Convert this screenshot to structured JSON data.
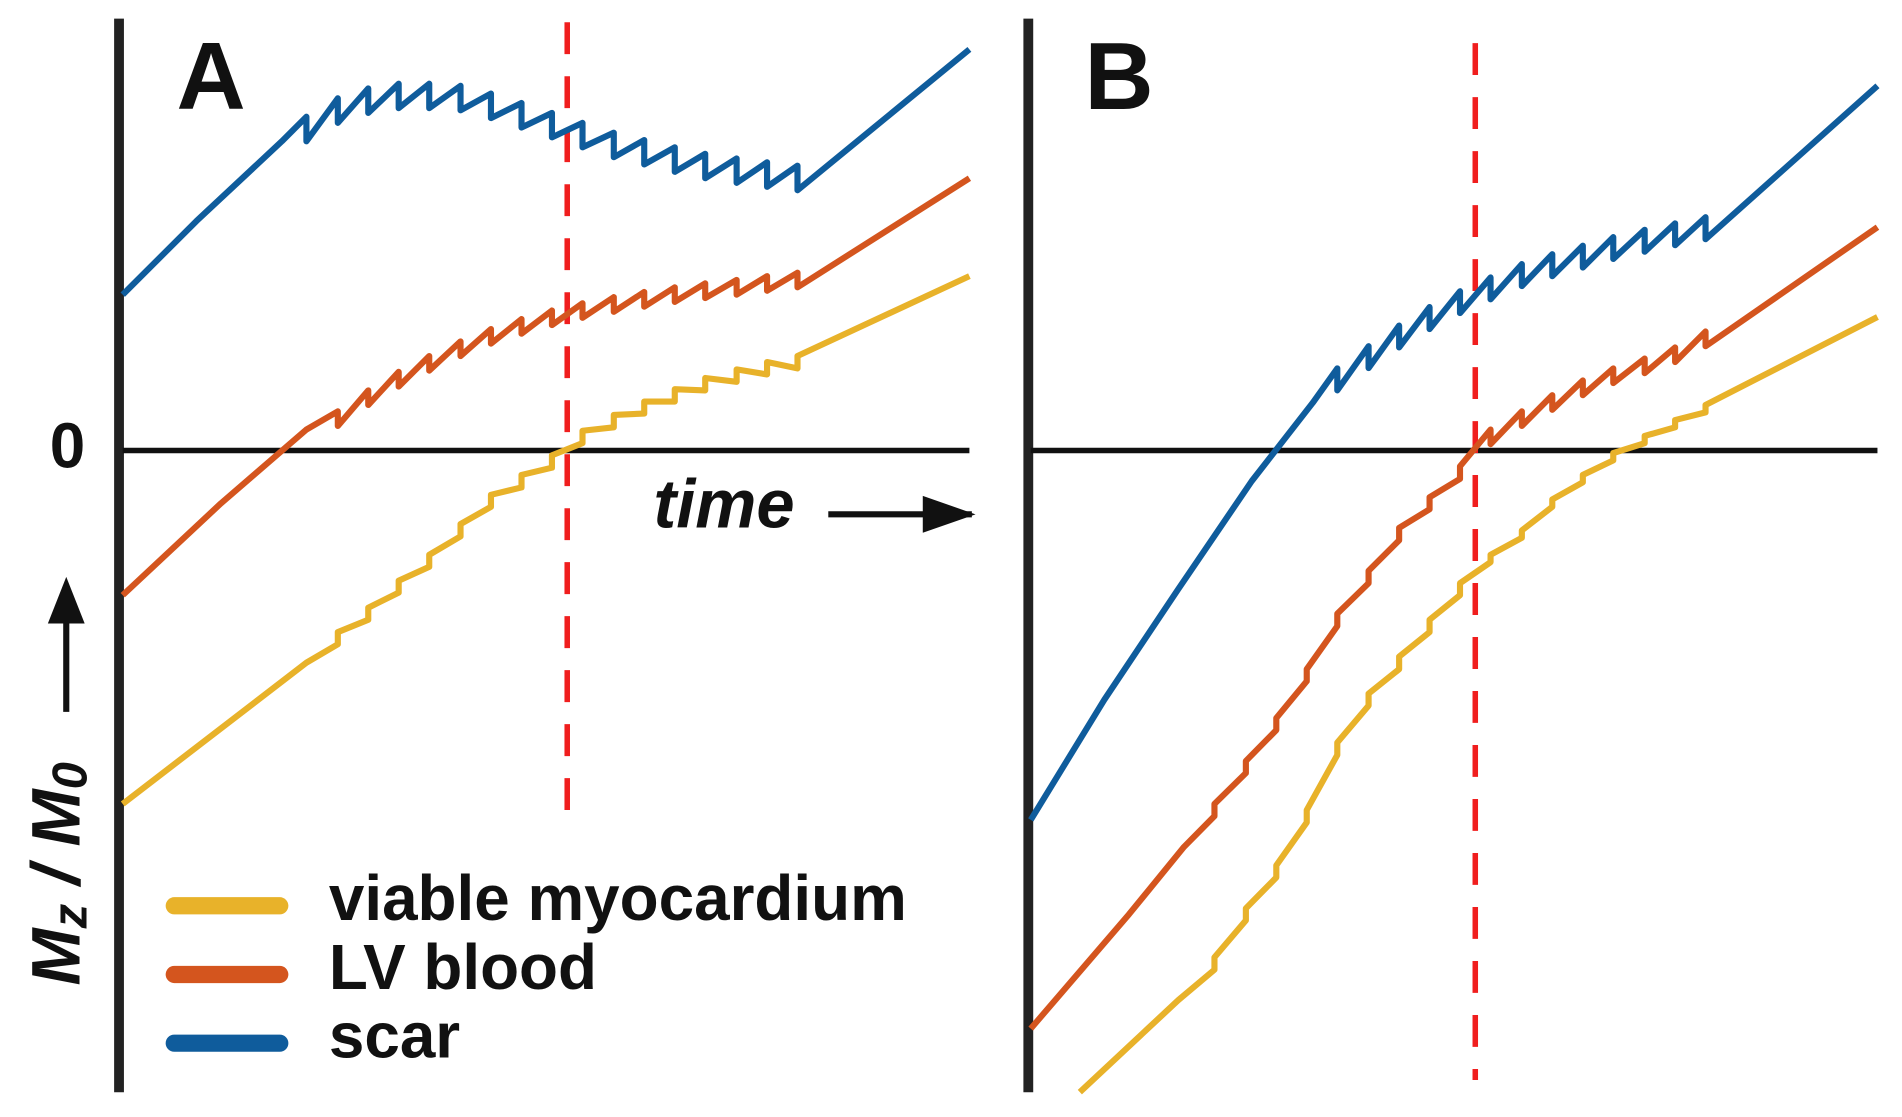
{
  "chart_data": [
    {
      "type": "line",
      "panel_label": "A",
      "x_label": "time",
      "y_label": [
        "M",
        "z",
        " / M",
        "0"
      ],
      "xlim": [
        0,
        1
      ],
      "ylim": [
        -1.5,
        1
      ],
      "yticks": [
        0
      ],
      "show_tick_labels": true,
      "vlines": [
        0.525
      ],
      "vline_color": "#f01e1e",
      "legend": "lower left",
      "series": [
        {
          "name": "viable myocardium",
          "color": "#e8b22a",
          "x": [
            0,
            0.217,
            0.254,
            0.254,
            0.29,
            0.29,
            0.326,
            0.326,
            0.362,
            0.362,
            0.399,
            0.399,
            0.435,
            0.435,
            0.471,
            0.471,
            0.507,
            0.507,
            0.543,
            0.543,
            0.58,
            0.58,
            0.616,
            0.616,
            0.652,
            0.652,
            0.688,
            0.688,
            0.725,
            0.725,
            0.761,
            0.761,
            0.797,
            0.797,
            1.0
          ],
          "values": [
            -0.823,
            -0.494,
            -0.451,
            -0.423,
            -0.394,
            -0.366,
            -0.331,
            -0.303,
            -0.271,
            -0.243,
            -0.2,
            -0.171,
            -0.131,
            -0.103,
            -0.086,
            -0.057,
            -0.04,
            -0.011,
            0.017,
            0.046,
            0.054,
            0.083,
            0.086,
            0.114,
            0.114,
            0.143,
            0.14,
            0.169,
            0.16,
            0.189,
            0.177,
            0.206,
            0.191,
            0.22,
            0.406
          ]
        },
        {
          "name": "LV blood",
          "color": "#d4551e",
          "x": [
            0,
            0.116,
            0.217,
            0.254,
            0.254,
            0.29,
            0.29,
            0.326,
            0.326,
            0.362,
            0.362,
            0.399,
            0.399,
            0.435,
            0.435,
            0.471,
            0.471,
            0.507,
            0.507,
            0.543,
            0.543,
            0.58,
            0.58,
            0.616,
            0.616,
            0.652,
            0.652,
            0.688,
            0.688,
            0.725,
            0.725,
            0.761,
            0.761,
            0.797,
            0.797,
            1.0
          ],
          "values": [
            -0.337,
            -0.123,
            0.049,
            0.091,
            0.057,
            0.14,
            0.106,
            0.183,
            0.149,
            0.22,
            0.186,
            0.254,
            0.22,
            0.283,
            0.249,
            0.306,
            0.272,
            0.326,
            0.292,
            0.343,
            0.309,
            0.357,
            0.323,
            0.369,
            0.335,
            0.38,
            0.346,
            0.389,
            0.355,
            0.397,
            0.363,
            0.406,
            0.372,
            0.414,
            0.38,
            0.634
          ]
        },
        {
          "name": "scar",
          "color": "#0f5c9c",
          "x": [
            0,
            0.087,
            0.188,
            0.217,
            0.217,
            0.254,
            0.254,
            0.29,
            0.29,
            0.326,
            0.326,
            0.362,
            0.362,
            0.399,
            0.399,
            0.435,
            0.435,
            0.471,
            0.471,
            0.507,
            0.507,
            0.543,
            0.543,
            0.58,
            0.58,
            0.616,
            0.616,
            0.652,
            0.652,
            0.688,
            0.688,
            0.725,
            0.725,
            0.761,
            0.761,
            0.797,
            0.797,
            1.0
          ],
          "values": [
            0.363,
            0.534,
            0.72,
            0.777,
            0.72,
            0.82,
            0.763,
            0.843,
            0.786,
            0.854,
            0.797,
            0.854,
            0.797,
            0.849,
            0.792,
            0.831,
            0.774,
            0.809,
            0.752,
            0.786,
            0.729,
            0.763,
            0.706,
            0.74,
            0.683,
            0.723,
            0.666,
            0.706,
            0.649,
            0.691,
            0.634,
            0.68,
            0.623,
            0.671,
            0.614,
            0.663,
            0.606,
            0.934
          ]
        }
      ]
    },
    {
      "type": "line",
      "panel_label": "B",
      "xlim": [
        0,
        1
      ],
      "ylim": [
        -1.5,
        1
      ],
      "yticks": [
        0
      ],
      "show_tick_labels": false,
      "vlines": [
        0.525
      ],
      "vline_color": "#f01e1e",
      "series": [
        {
          "color": "#e8b22a",
          "x": [
            0.058,
            0.174,
            0.217,
            0.217,
            0.254,
            0.254,
            0.29,
            0.29,
            0.326,
            0.326,
            0.362,
            0.362,
            0.399,
            0.399,
            0.435,
            0.435,
            0.471,
            0.471,
            0.507,
            0.507,
            0.543,
            0.543,
            0.58,
            0.58,
            0.616,
            0.616,
            0.652,
            0.652,
            0.688,
            0.688,
            0.725,
            0.725,
            0.761,
            0.761,
            0.797,
            0.797,
            1.0
          ],
          "values": [
            -1.494,
            -1.28,
            -1.209,
            -1.18,
            -1.094,
            -1.066,
            -0.994,
            -0.966,
            -0.866,
            -0.837,
            -0.709,
            -0.68,
            -0.594,
            -0.566,
            -0.509,
            -0.48,
            -0.423,
            -0.394,
            -0.337,
            -0.309,
            -0.26,
            -0.243,
            -0.203,
            -0.186,
            -0.131,
            -0.114,
            -0.074,
            -0.057,
            -0.023,
            -0.006,
            0.017,
            0.034,
            0.054,
            0.071,
            0.089,
            0.106,
            0.311
          ]
        },
        {
          "color": "#d4551e",
          "x": [
            0,
            0.116,
            0.181,
            0.217,
            0.217,
            0.254,
            0.254,
            0.29,
            0.29,
            0.326,
            0.326,
            0.362,
            0.362,
            0.399,
            0.399,
            0.435,
            0.435,
            0.471,
            0.471,
            0.507,
            0.507,
            0.543,
            0.543,
            0.58,
            0.58,
            0.616,
            0.616,
            0.652,
            0.652,
            0.688,
            0.688,
            0.725,
            0.725,
            0.761,
            0.761,
            0.797,
            0.797,
            1.0
          ],
          "values": [
            -1.346,
            -1.08,
            -0.923,
            -0.851,
            -0.823,
            -0.751,
            -0.723,
            -0.651,
            -0.623,
            -0.537,
            -0.509,
            -0.409,
            -0.38,
            -0.309,
            -0.28,
            -0.209,
            -0.18,
            -0.137,
            -0.109,
            -0.066,
            -0.037,
            0.049,
            0.015,
            0.091,
            0.057,
            0.129,
            0.095,
            0.163,
            0.129,
            0.191,
            0.157,
            0.214,
            0.18,
            0.24,
            0.206,
            0.277,
            0.243,
            0.52
          ]
        },
        {
          "color": "#0f5c9c",
          "x": [
            0,
            0.087,
            0.174,
            0.261,
            0.333,
            0.362,
            0.362,
            0.399,
            0.399,
            0.435,
            0.435,
            0.471,
            0.471,
            0.507,
            0.507,
            0.543,
            0.543,
            0.58,
            0.58,
            0.616,
            0.616,
            0.652,
            0.652,
            0.688,
            0.688,
            0.725,
            0.725,
            0.761,
            0.761,
            0.797,
            0.797,
            1.0
          ],
          "values": [
            -0.86,
            -0.58,
            -0.323,
            -0.071,
            0.111,
            0.191,
            0.14,
            0.243,
            0.192,
            0.291,
            0.24,
            0.334,
            0.283,
            0.371,
            0.32,
            0.403,
            0.352,
            0.434,
            0.383,
            0.457,
            0.406,
            0.477,
            0.426,
            0.497,
            0.446,
            0.514,
            0.463,
            0.529,
            0.478,
            0.543,
            0.492,
            0.849
          ]
        }
      ]
    }
  ]
}
